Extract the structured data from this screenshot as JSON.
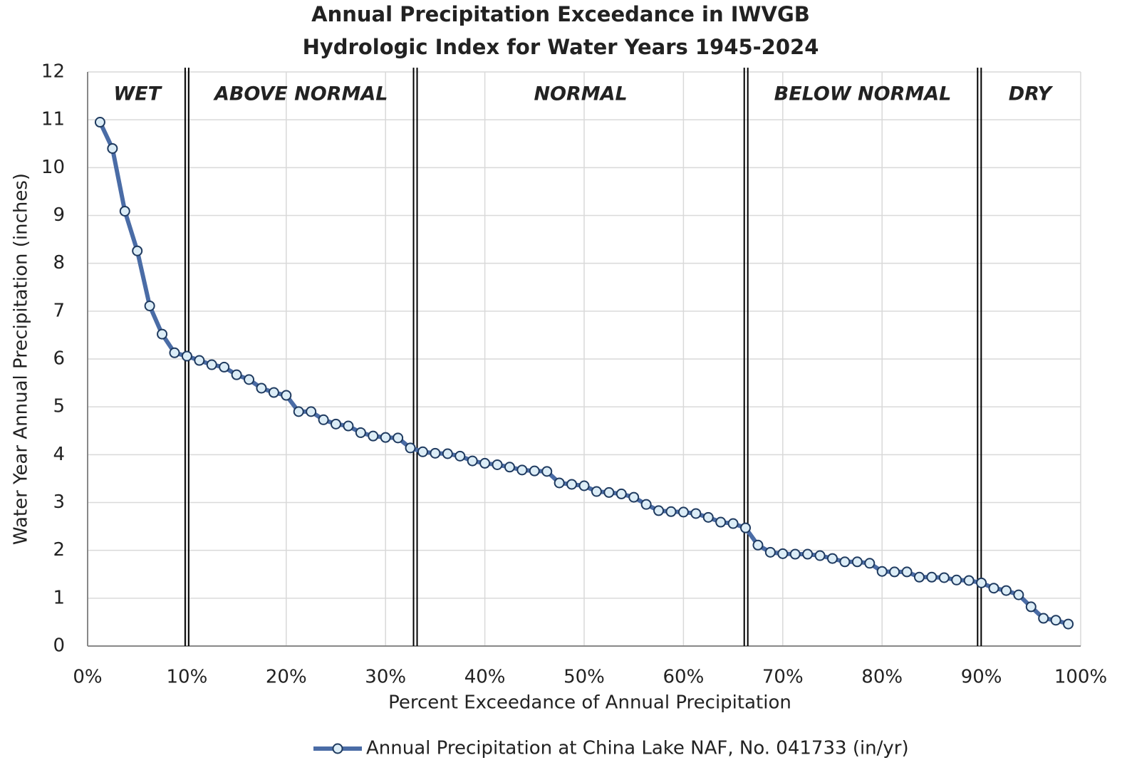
{
  "chart_data": {
    "type": "line",
    "title": [
      "Annual Precipitation Exceedance in IWVGB",
      "Hydrologic Index for Water Years 1945-2024"
    ],
    "x_label": "Percent Exceedance of Annual Precipitation",
    "y_label": "Water Year Annual Precipitation (inches)",
    "xlim": [
      0,
      100
    ],
    "ylim": [
      0,
      12
    ],
    "xticks": [
      {
        "value": 0,
        "label": "0%"
      },
      {
        "value": 10,
        "label": "10%"
      },
      {
        "value": 20,
        "label": "20%"
      },
      {
        "value": 30,
        "label": "30%"
      },
      {
        "value": 40,
        "label": "40%"
      },
      {
        "value": 50,
        "label": "50%"
      },
      {
        "value": 60,
        "label": "60%"
      },
      {
        "value": 70,
        "label": "70%"
      },
      {
        "value": 80,
        "label": "80%"
      },
      {
        "value": 90,
        "label": "90%"
      },
      {
        "value": 100,
        "label": "100%"
      }
    ],
    "yticks": [
      0,
      1,
      2,
      3,
      4,
      5,
      6,
      7,
      8,
      9,
      10,
      11,
      12
    ],
    "grid": true,
    "legend": "bottom",
    "zones": [
      {
        "label": "WET",
        "from": 0,
        "to": 10
      },
      {
        "label": "ABOVE NORMAL",
        "from": 10,
        "to": 33
      },
      {
        "label": "NORMAL",
        "from": 33,
        "to": 66.3
      },
      {
        "label": "BELOW NORMAL",
        "from": 66.3,
        "to": 89.8
      },
      {
        "label": "DRY",
        "from": 89.8,
        "to": 100
      }
    ],
    "x": [
      1.25,
      2.5,
      3.75,
      5,
      6.25,
      7.5,
      8.75,
      10,
      11.25,
      12.5,
      13.75,
      15,
      16.25,
      17.5,
      18.75,
      20,
      21.25,
      22.5,
      23.75,
      25,
      26.25,
      27.5,
      28.75,
      30,
      31.25,
      32.5,
      33.75,
      35,
      36.25,
      37.5,
      38.75,
      40,
      41.25,
      42.5,
      43.75,
      45,
      46.25,
      47.5,
      48.75,
      50,
      51.25,
      52.5,
      53.75,
      55,
      56.25,
      57.5,
      58.75,
      60,
      61.25,
      62.5,
      63.75,
      65,
      66.25,
      67.5,
      68.75,
      70,
      71.25,
      72.5,
      73.75,
      75,
      76.25,
      77.5,
      78.75,
      80,
      81.25,
      82.5,
      83.75,
      85,
      86.25,
      87.5,
      88.75,
      90,
      91.25,
      92.5,
      93.75,
      95,
      96.25,
      97.5,
      98.75
    ],
    "series": [
      {
        "name": "Annual Precipitation at China Lake NAF, No. 041733 (in/yr)",
        "color": "#4a6ca6",
        "marker_fill": "#dcedf7",
        "values": [
          10.95,
          10.4,
          9.09,
          8.26,
          7.11,
          6.52,
          6.13,
          6.06,
          5.97,
          5.88,
          5.83,
          5.67,
          5.57,
          5.39,
          5.3,
          5.24,
          4.9,
          4.9,
          4.73,
          4.64,
          4.6,
          4.46,
          4.39,
          4.36,
          4.35,
          4.14,
          4.06,
          4.03,
          4.02,
          3.97,
          3.87,
          3.82,
          3.79,
          3.74,
          3.68,
          3.66,
          3.65,
          3.41,
          3.38,
          3.35,
          3.23,
          3.21,
          3.18,
          3.11,
          2.96,
          2.83,
          2.81,
          2.8,
          2.77,
          2.69,
          2.59,
          2.56,
          2.47,
          2.11,
          1.96,
          1.93,
          1.92,
          1.92,
          1.89,
          1.83,
          1.76,
          1.76,
          1.73,
          1.56,
          1.55,
          1.55,
          1.44,
          1.44,
          1.43,
          1.38,
          1.37,
          1.32,
          1.21,
          1.16,
          1.07,
          0.82,
          0.58,
          0.54,
          0.46
        ]
      }
    ]
  }
}
